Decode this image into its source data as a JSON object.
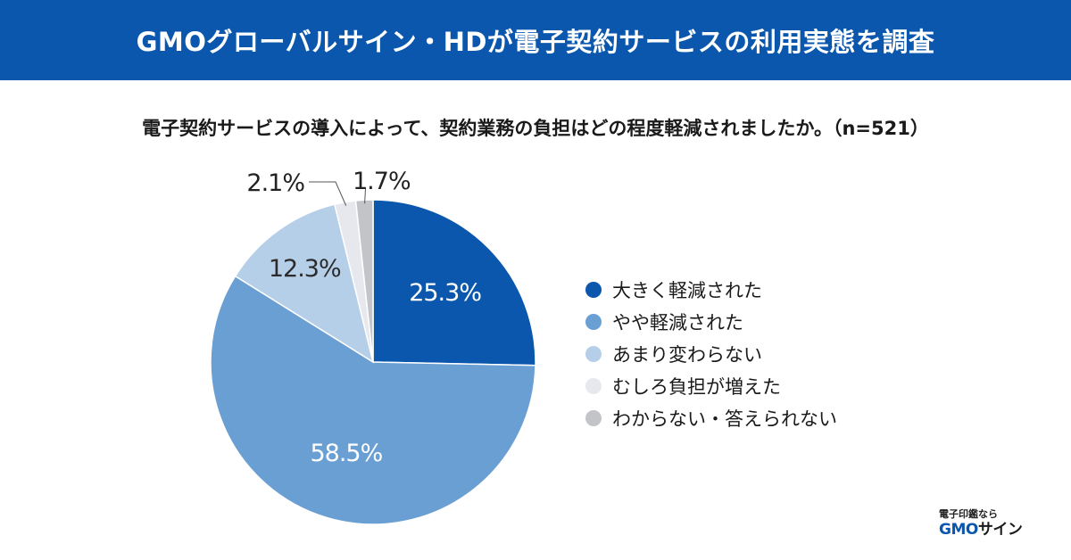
{
  "header": {
    "title": "GMOグローバルサイン・HDが電子契約サービスの利用実態を調査"
  },
  "question": "電子契約サービスの導入によって、契約業務の負担はどの程度軽減されましたか。（n=521）",
  "brand": {
    "tagline": "電子印鑑なら",
    "logo_gmo": "GMO",
    "logo_sign": "サイン"
  },
  "colors": {
    "banner": "#0a57ad",
    "slice_1": "#0a57ad",
    "slice_2": "#6a9fd3",
    "slice_3": "#b6cfe8",
    "slice_4": "#e6e8ee",
    "slice_5": "#c2c4c8"
  },
  "chart_data": {
    "type": "pie",
    "title": "電子契約サービスの導入によって、契約業務の負担はどの程度軽減されましたか。（n=521）",
    "categories": [
      "大きく軽減された",
      "やや軽減された",
      "あまり変わらない",
      "むしろ負担が増えた",
      "わからない・答えられない"
    ],
    "values": [
      25.3,
      58.5,
      12.3,
      2.1,
      1.7
    ],
    "value_labels": [
      "25.3%",
      "58.5%",
      "12.3%",
      "2.1%",
      "1.7%"
    ],
    "colors": [
      "#0a57ad",
      "#6a9fd3",
      "#b6cfe8",
      "#e6e8ee",
      "#c2c4c8"
    ],
    "legend_position": "right"
  }
}
